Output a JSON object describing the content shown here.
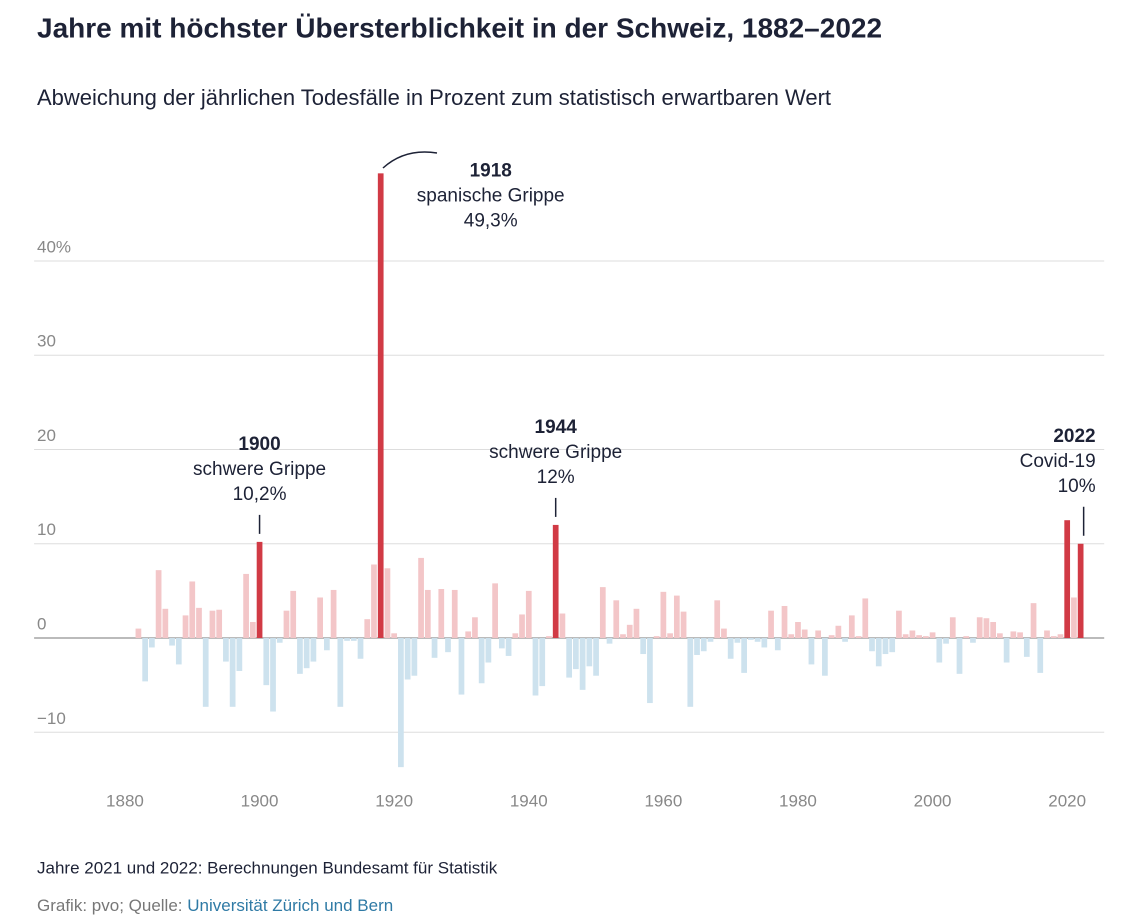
{
  "chart_data": {
    "type": "bar",
    "title": "Jahre mit höchster Übersterblichkeit in der Schweiz, 1882–2022",
    "subtitle": "Abweichung der jährlichen Todesfälle in Prozent zum statistisch erwartbaren Wert",
    "x": [
      1882,
      1883,
      1884,
      1885,
      1886,
      1887,
      1888,
      1889,
      1890,
      1891,
      1892,
      1893,
      1894,
      1895,
      1896,
      1897,
      1898,
      1899,
      1900,
      1901,
      1902,
      1903,
      1904,
      1905,
      1906,
      1907,
      1908,
      1909,
      1910,
      1911,
      1912,
      1913,
      1914,
      1915,
      1916,
      1917,
      1918,
      1919,
      1920,
      1921,
      1922,
      1923,
      1924,
      1925,
      1926,
      1927,
      1928,
      1929,
      1930,
      1931,
      1932,
      1933,
      1934,
      1935,
      1936,
      1937,
      1938,
      1939,
      1940,
      1941,
      1942,
      1943,
      1944,
      1945,
      1946,
      1947,
      1948,
      1949,
      1950,
      1951,
      1952,
      1953,
      1954,
      1955,
      1956,
      1957,
      1958,
      1959,
      1960,
      1961,
      1962,
      1963,
      1964,
      1965,
      1966,
      1967,
      1968,
      1969,
      1970,
      1971,
      1972,
      1973,
      1974,
      1975,
      1976,
      1977,
      1978,
      1979,
      1980,
      1981,
      1982,
      1983,
      1984,
      1985,
      1986,
      1987,
      1988,
      1989,
      1990,
      1991,
      1992,
      1993,
      1994,
      1995,
      1996,
      1997,
      1998,
      1999,
      2000,
      2001,
      2002,
      2003,
      2004,
      2005,
      2006,
      2007,
      2008,
      2009,
      2010,
      2011,
      2012,
      2013,
      2014,
      2015,
      2016,
      2017,
      2018,
      2019,
      2020,
      2021,
      2022
    ],
    "values": [
      1,
      -4.6,
      -1,
      7.2,
      3.1,
      -0.8,
      -2.8,
      2.4,
      6,
      3.2,
      -7.3,
      2.9,
      3,
      -2.5,
      -7.3,
      -3.5,
      6.8,
      1.7,
      10.2,
      -5,
      -7.8,
      -0.5,
      2.9,
      5,
      -3.8,
      -3.2,
      -2.5,
      4.3,
      -1.3,
      5.1,
      -7.3,
      -0.3,
      -0.3,
      -2.2,
      2,
      7.8,
      49.3,
      7.4,
      0.5,
      -13.7,
      -4.4,
      -4,
      8.5,
      5.1,
      -2.1,
      5.2,
      -1.5,
      5.1,
      -6,
      0.7,
      2.2,
      -4.8,
      -2.6,
      5.8,
      -1.1,
      -1.9,
      0.5,
      2.5,
      5,
      -6.1,
      -5.1,
      0.2,
      12,
      2.6,
      -4.2,
      -3.3,
      -5.5,
      -3,
      -4,
      5.4,
      -0.6,
      4,
      0.4,
      1.4,
      3.1,
      -1.7,
      -6.9,
      0.2,
      4.9,
      0.5,
      4.5,
      2.8,
      -7.3,
      -1.8,
      -1.4,
      -0.4,
      4,
      1,
      -2.2,
      -0.5,
      -3.7,
      -0.2,
      -0.4,
      -1,
      2.9,
      -1.3,
      3.4,
      0.4,
      1.7,
      0.9,
      -2.8,
      0.8,
      -4,
      0.3,
      1.3,
      -0.4,
      2.4,
      0.2,
      4.2,
      -1.4,
      -3,
      -1.7,
      -1.5,
      2.9,
      0.4,
      0.8,
      0.3,
      0.2,
      0.6,
      -2.6,
      -0.6,
      2.2,
      -3.8,
      0.2,
      -0.5,
      2.2,
      2.1,
      1.7,
      0.5,
      -2.6,
      0.7,
      0.6,
      -2,
      3.7,
      -3.7,
      0.8,
      0.2,
      0.4,
      12.5,
      4.3,
      10
    ],
    "colors": {
      "positive": "#f3c6c8",
      "negative": "#cde2ee",
      "highlight": "#d13a45"
    },
    "highlight_x": [
      1900,
      1918,
      1944,
      2020,
      2022
    ],
    "xlim": [
      1866.5,
      2025.5
    ],
    "xticks": [
      1880,
      1900,
      1920,
      1940,
      1960,
      1980,
      2000,
      2020
    ],
    "ylim": [
      -15,
      50
    ],
    "yticks": [
      {
        "value": -10,
        "label": "−10"
      },
      0,
      10,
      20,
      30,
      {
        "value": 40,
        "label": "40%"
      }
    ],
    "grid": true,
    "annotations": [
      {
        "x": 1900,
        "text": "schwere Grippe",
        "value_label": "10,2%"
      },
      {
        "x": 1918,
        "text": "spanische Grippe",
        "value_label": "49,3%"
      },
      {
        "x": 1944,
        "text": "schwere Grippe",
        "value_label": "12%"
      },
      {
        "x": 2022,
        "text": "Covid-19",
        "value_label": "10%"
      }
    ],
    "note": "Jahre 2021 und 2022: Berechnungen Bundesamt für Statistik",
    "credit": "Grafik: pvo; Quelle: ",
    "source": "Universität Zürich und Bern"
  }
}
